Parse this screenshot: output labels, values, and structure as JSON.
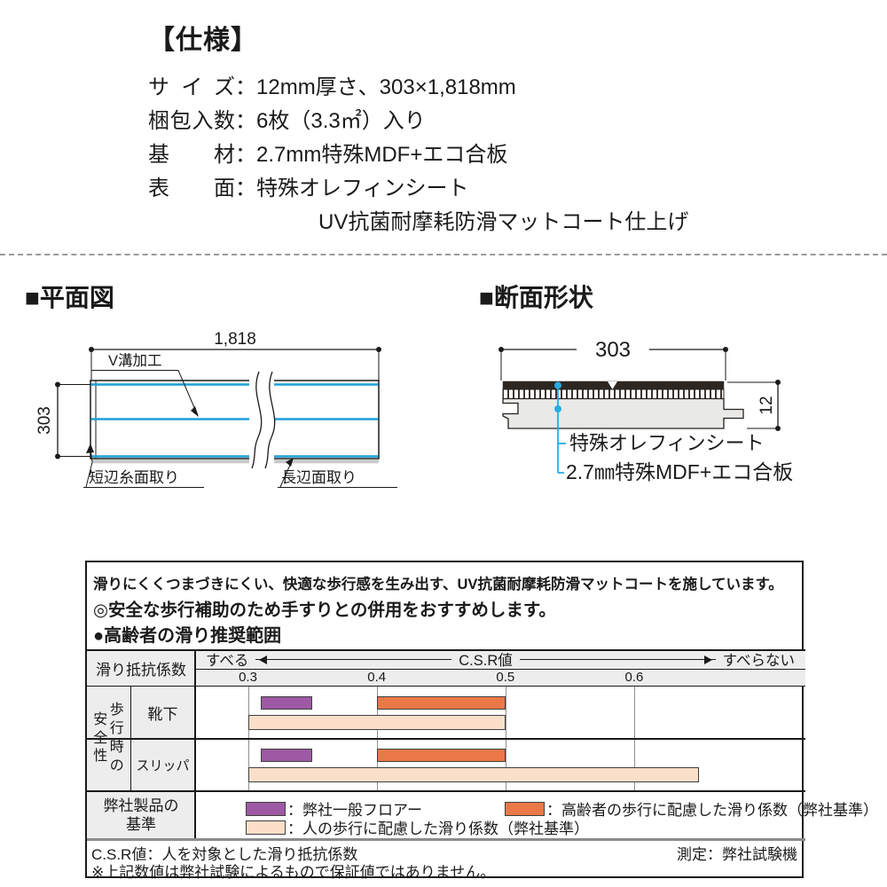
{
  "colors": {
    "accent_blue": "#1b9fd9",
    "leader_blue": "#29abe2",
    "gridline": "#909090",
    "cell_bg": "#ededed",
    "bar_border": "#3f3f3f"
  },
  "spec": {
    "heading": "【仕様】",
    "colon": "：",
    "rows": [
      {
        "label": "サイズ",
        "value": "12mm厚さ、303×1,818mm"
      },
      {
        "label": "梱包入数",
        "value": "6枚（3.3㎡）入り"
      },
      {
        "label": "基材",
        "value": "2.7mm特殊MDF+エコ合板"
      },
      {
        "label": "表面",
        "value": "特殊オレフィンシート"
      }
    ],
    "continuation": "UV抗菌耐摩耗防滑マットコート仕上げ"
  },
  "plan": {
    "title": "■平面図",
    "dim_width": "1,818",
    "dim_height": "303",
    "groove_label": "V溝加工",
    "short_edge_label": "短辺糸面取り",
    "long_edge_label": "長辺面取り"
  },
  "section": {
    "title": "■断面形状",
    "dim_width": "303",
    "dim_thickness": "12",
    "sheet_label": "特殊オレフィンシート",
    "base_label": "2.7㎜特殊MDF+エコ合板"
  },
  "slip_panel": {
    "line1": "滑りにくくつまづきにくい、快適な歩行感を生み出す、UV抗菌耐摩耗防滑マットコートを施しています。",
    "line2": "◎安全な歩行補助のため手すりとの併用をおすすめします。",
    "line3": "●高齢者の滑り推奨範囲",
    "header_cell": "滑り抵抗係数",
    "vlabel_left": "安全性",
    "vlabel_right": "歩行時の",
    "row_sock": "靴下",
    "row_slipper": "スリッパ",
    "std_line1": "弊社製品の",
    "std_line2": "基準",
    "legend": [
      {
        "label": "：弊社一般フロアー"
      },
      {
        "label": "：高齢者の歩行に配慮した滑り係数（弊社基準）"
      },
      {
        "label": "：人の歩行に配慮した滑り係数（弊社基準）"
      }
    ],
    "footer_left": "C.S.R値：人を対象とした滑り抵抗係数",
    "footer_right": "測定：弊社試験機",
    "footer_note": "※上記数値は弊社試験によるもので保証値ではありません。"
  },
  "chart_data": {
    "type": "bar",
    "orientation": "horizontal-range",
    "title": "高齢者の滑り推奨範囲",
    "axis": {
      "label": "C.S.R値",
      "left_end_label": "すべる",
      "right_end_label": "すべらない",
      "ticks": [
        0.3,
        0.4,
        0.5,
        0.6
      ],
      "xmin": 0.259,
      "xmax": 0.733,
      "grid": true
    },
    "series": [
      {
        "name": "弊社一般フロアー",
        "color": "#9d59a4"
      },
      {
        "name": "高齢者の歩行に配慮した滑り係数（弊社基準）",
        "color": "#eb7847"
      },
      {
        "name": "人の歩行に配慮した滑り係数（弊社基準）",
        "color": "#fbdfc9"
      }
    ],
    "rows": [
      {
        "label": "靴下",
        "bars": [
          {
            "series": 0,
            "from": 0.31,
            "to": 0.35,
            "lane": 0
          },
          {
            "series": 1,
            "from": 0.4,
            "to": 0.5,
            "lane": 0
          },
          {
            "series": 2,
            "from": 0.3,
            "to": 0.5,
            "lane": 1
          }
        ]
      },
      {
        "label": "スリッパ",
        "bars": [
          {
            "series": 0,
            "from": 0.31,
            "to": 0.35,
            "lane": 0
          },
          {
            "series": 1,
            "from": 0.4,
            "to": 0.5,
            "lane": 0
          },
          {
            "series": 2,
            "from": 0.3,
            "to": 0.65,
            "lane": 1
          }
        ]
      }
    ]
  }
}
